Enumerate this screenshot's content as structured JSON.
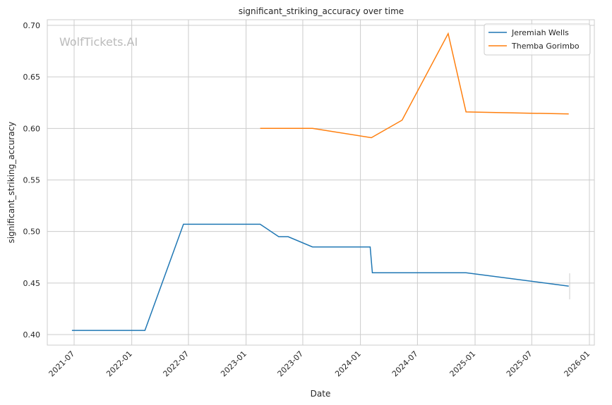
{
  "chart_data": {
    "type": "line",
    "title": "significant_striking_accuracy over time",
    "xlabel": "Date",
    "ylabel": "significant_striking_accuracy",
    "watermark": "WolfTickets.AI",
    "xlim": [
      "2021-05-01",
      "2026-01-15"
    ],
    "ylim": [
      0.39,
      0.71
    ],
    "x_ticks": [
      "2021-07",
      "2022-01",
      "2022-07",
      "2023-01",
      "2023-07",
      "2024-01",
      "2024-07",
      "2025-01",
      "2025-07",
      "2026-01"
    ],
    "y_ticks": [
      "0.40",
      "0.45",
      "0.50",
      "0.55",
      "0.60",
      "0.65",
      "0.70"
    ],
    "grid": true,
    "legend_position": "top-right",
    "series": [
      {
        "name": "Jeremiah Wells",
        "color": "#1f77b4",
        "points": [
          [
            "2021-06-24",
            0.404
          ],
          [
            "2022-02-12",
            0.404
          ],
          [
            "2022-06-15",
            0.507
          ],
          [
            "2023-02-15",
            0.507
          ],
          [
            "2023-04-15",
            0.495
          ],
          [
            "2023-05-15",
            0.495
          ],
          [
            "2023-08-01",
            0.485
          ],
          [
            "2024-02-01",
            0.485
          ],
          [
            "2024-02-08",
            0.46
          ],
          [
            "2024-12-03",
            0.46
          ],
          [
            "2025-10-27",
            0.447
          ]
        ]
      },
      {
        "name": "Themba Gorimbo",
        "color": "#ff7f0e",
        "points": [
          [
            "2023-02-15",
            0.6
          ],
          [
            "2023-08-01",
            0.6
          ],
          [
            "2024-02-05",
            0.591
          ],
          [
            "2024-05-13",
            0.608
          ],
          [
            "2024-10-07",
            0.692
          ],
          [
            "2024-12-03",
            0.616
          ],
          [
            "2025-10-27",
            0.614
          ]
        ]
      }
    ]
  }
}
